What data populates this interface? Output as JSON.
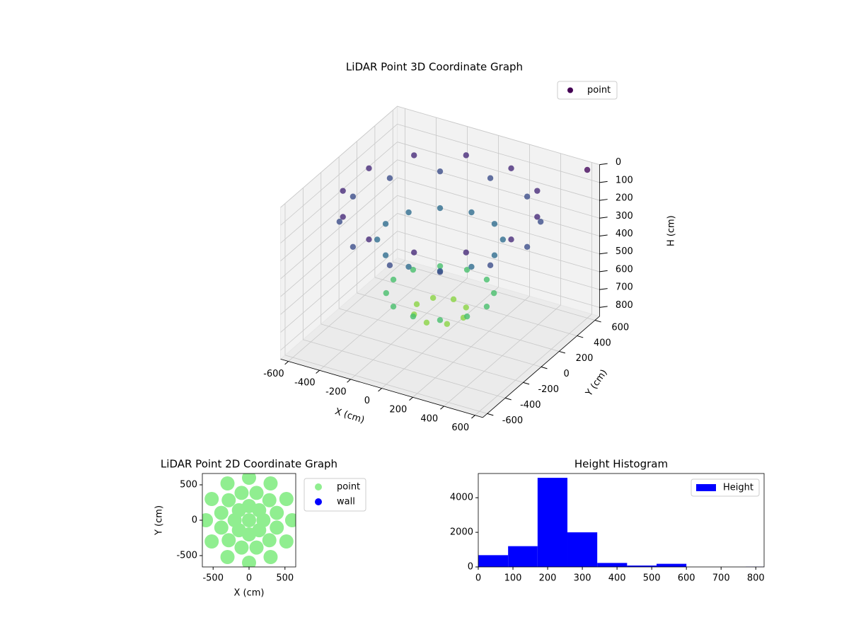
{
  "chart_data": [
    {
      "type": "scatter3d",
      "title": "LiDAR Point 3D Coordinate Graph",
      "xlabel": "X (cm)",
      "ylabel": "Y (cm)",
      "zlabel": "H (cm)",
      "xlim": [
        -650,
        650
      ],
      "ylim": [
        -650,
        650
      ],
      "zlim": [
        0,
        850
      ],
      "zinverted": true,
      "xticks": [
        -600,
        -400,
        -200,
        0,
        200,
        400,
        600
      ],
      "yticks": [
        -600,
        -400,
        -200,
        0,
        200,
        400,
        600
      ],
      "zticks": [
        0,
        100,
        200,
        300,
        400,
        500,
        600,
        700,
        800
      ],
      "grid": true,
      "legend": "upper right",
      "cmap": "viridis",
      "series": [
        {
          "name": "point",
          "color": "#440154",
          "x": [
            560,
            485,
            280,
            0,
            -280,
            -485,
            -560,
            -485,
            -280,
            0,
            280,
            485,
            541,
            396,
            145,
            -145,
            -396,
            -541,
            -541,
            -396,
            -145,
            145,
            396,
            541,
            350,
            303,
            175,
            0,
            -175,
            -303,
            -350,
            -303,
            -175,
            0,
            175,
            303,
            300,
            260,
            150,
            0,
            -150,
            -260,
            -300,
            -260,
            -150,
            0,
            150,
            260,
            150,
            106,
            0,
            -106,
            -150,
            -106,
            0,
            106,
            600
          ],
          "y": [
            0,
            280,
            485,
            560,
            485,
            280,
            0,
            -280,
            -485,
            -560,
            -485,
            -280,
            145,
            396,
            541,
            541,
            396,
            145,
            -145,
            -396,
            -541,
            -541,
            -396,
            -145,
            0,
            175,
            303,
            350,
            303,
            175,
            0,
            -175,
            -303,
            -350,
            -303,
            -175,
            0,
            150,
            260,
            300,
            260,
            150,
            0,
            -150,
            -260,
            -300,
            -260,
            -150,
            0,
            106,
            150,
            106,
            0,
            -106,
            -150,
            -106,
            600
          ],
          "z": [
            200,
            200,
            200,
            200,
            200,
            200,
            200,
            200,
            200,
            200,
            200,
            200,
            100,
            100,
            100,
            100,
            100,
            100,
            100,
            100,
            100,
            100,
            100,
            100,
            300,
            300,
            300,
            300,
            300,
            300,
            300,
            300,
            300,
            300,
            300,
            300,
            600,
            600,
            600,
            600,
            600,
            600,
            600,
            600,
            600,
            600,
            600,
            600,
            700,
            700,
            700,
            700,
            700,
            700,
            700,
            700,
            20
          ]
        }
      ]
    },
    {
      "type": "scatter",
      "title": "LiDAR Point 2D Coordinate Graph",
      "xlabel": "X (cm)",
      "ylabel": "Y (cm)",
      "xlim": [
        -650,
        650
      ],
      "ylim": [
        -660,
        660
      ],
      "xticks": [
        -500,
        0,
        500
      ],
      "yticks": [
        -500,
        0,
        500
      ],
      "legend": "outside",
      "series": [
        {
          "name": "point",
          "color": "#90ee90",
          "x": [
            600,
            520,
            300,
            0,
            -300,
            -520,
            -600,
            -520,
            -300,
            0,
            300,
            520,
            386,
            283,
            104,
            -104,
            -283,
            -386,
            -386,
            -283,
            -104,
            104,
            283,
            386,
            200,
            0,
            -200,
            0,
            141,
            -141,
            -141,
            141,
            0
          ],
          "y": [
            0,
            300,
            520,
            600,
            520,
            300,
            0,
            -300,
            -520,
            -600,
            -520,
            -300,
            104,
            283,
            386,
            386,
            283,
            104,
            -104,
            -283,
            -386,
            -386,
            -283,
            -104,
            0,
            200,
            0,
            -200,
            141,
            141,
            -141,
            -141,
            0
          ]
        },
        {
          "name": "wall",
          "color": "#0000ff",
          "x": [],
          "y": []
        }
      ]
    },
    {
      "type": "histogram",
      "title": "Height Histogram",
      "bins": [
        0,
        86,
        171,
        257,
        343,
        429,
        514,
        600,
        686,
        771,
        857
      ],
      "counts": [
        680,
        1200,
        5150,
        2000,
        230,
        80,
        180,
        0,
        0,
        10
      ],
      "xlim": [
        0,
        824
      ],
      "ylim": [
        0,
        5400
      ],
      "xticks": [
        0,
        100,
        200,
        300,
        400,
        500,
        600,
        700,
        800
      ],
      "yticks": [
        0,
        2000,
        4000
      ],
      "legend": "upper right",
      "series": [
        {
          "name": "Height",
          "color": "#0000ff"
        }
      ]
    }
  ]
}
